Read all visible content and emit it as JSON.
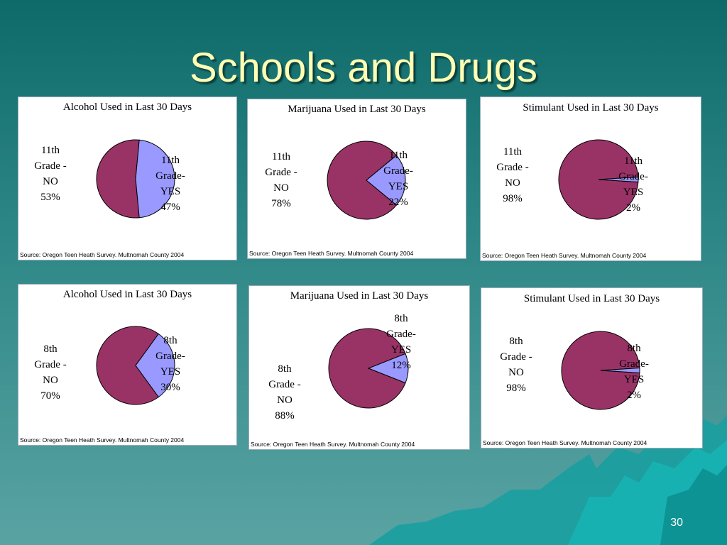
{
  "slide": {
    "title": "Schools and Drugs",
    "page_number": "30"
  },
  "colors": {
    "no": "#993366",
    "yes": "#9999ff",
    "title": "#ffffb4"
  },
  "chart_data": [
    {
      "type": "pie",
      "title": "Alcohol Used in Last 30 Days",
      "categories": [
        "11th Grade - NO",
        "11th Grade- YES"
      ],
      "values": [
        53,
        47
      ],
      "labels": [
        [
          "11th",
          "Grade -",
          "NO",
          "53%"
        ],
        [
          "11th",
          "Grade-",
          "YES",
          "47%"
        ]
      ],
      "source": "Source: Oregon Teen Heath Survey.  Multnomah County 2004"
    },
    {
      "type": "pie",
      "title": "Marijuana Used in Last 30 Days",
      "categories": [
        "11th Grade - NO",
        "11th Grade- YES"
      ],
      "values": [
        78,
        22
      ],
      "labels": [
        [
          "11th",
          "Grade -",
          "NO",
          "78%"
        ],
        [
          "11th",
          "Grade-",
          "YES",
          "22%"
        ]
      ],
      "source": "Source: Oregon Teen Heath Survey.  Multnomah County 2004"
    },
    {
      "type": "pie",
      "title": "Stimulant Used in Last 30 Days",
      "categories": [
        "11th Grade - NO",
        "11th Grade- YES"
      ],
      "values": [
        98,
        2
      ],
      "labels": [
        [
          "11th",
          "Grade -",
          "NO",
          "98%"
        ],
        [
          "11th",
          "Grade-",
          "YES",
          "2%"
        ]
      ],
      "source": "Source: Oregon Teen Heath Survey.  Multnomah County 2004"
    },
    {
      "type": "pie",
      "title": "Alcohol Used in Last 30 Days",
      "categories": [
        "8th Grade - NO",
        "8th Grade- YES"
      ],
      "values": [
        70,
        30
      ],
      "labels": [
        [
          "8th",
          "Grade -",
          "NO",
          "70%"
        ],
        [
          "8th",
          "Grade-",
          "YES",
          "30%"
        ]
      ],
      "source": "Source: Oregon Teen Heath Survey.  Multnomah County 2004"
    },
    {
      "type": "pie",
      "title": "Marijuana Used in Last 30 Days",
      "categories": [
        "8th Grade - NO",
        "8th Grade- YES"
      ],
      "values": [
        88,
        12
      ],
      "labels": [
        [
          "8th",
          "Grade -",
          "NO",
          "88%"
        ],
        [
          "8th",
          "Grade-",
          "YES",
          "12%"
        ]
      ],
      "source": "Source: Oregon Teen Heath Survey.  Multnomah County 2004"
    },
    {
      "type": "pie",
      "title": "Stimulant Used in Last 30 Days",
      "categories": [
        "8th Grade - NO",
        "8th Grade- YES"
      ],
      "values": [
        98,
        2
      ],
      "labels": [
        [
          "8th",
          "Grade -",
          "NO",
          "98%"
        ],
        [
          "8th",
          "Grade-",
          "YES",
          "2%"
        ]
      ],
      "source": "Source: Oregon Teen Heath Survey.  Multnomah County 2004"
    }
  ]
}
